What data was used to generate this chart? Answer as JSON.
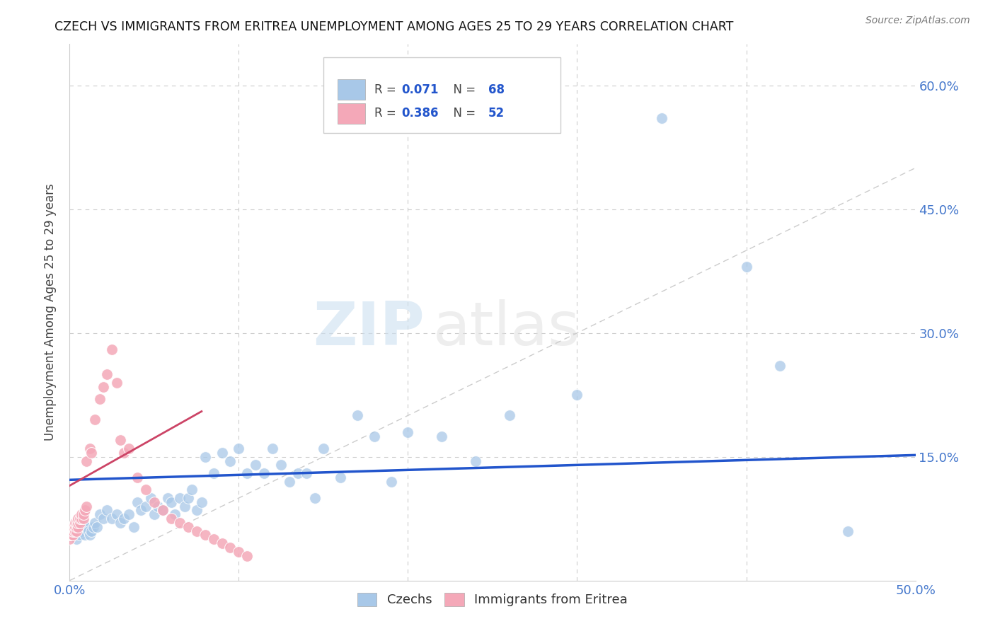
{
  "title": "CZECH VS IMMIGRANTS FROM ERITREA UNEMPLOYMENT AMONG AGES 25 TO 29 YEARS CORRELATION CHART",
  "source": "Source: ZipAtlas.com",
  "ylabel": "Unemployment Among Ages 25 to 29 years",
  "xlim": [
    0,
    0.5
  ],
  "ylim": [
    0,
    0.65
  ],
  "legend_r1": "0.071",
  "legend_n1": "68",
  "legend_r2": "0.386",
  "legend_n2": "52",
  "legend_label1": "Czechs",
  "legend_label2": "Immigrants from Eritrea",
  "blue_color": "#a8c8e8",
  "pink_color": "#f4a8b8",
  "line_blue": "#2255cc",
  "line_pink": "#cc4466",
  "axis_label_color": "#4477cc",
  "czechs_x": [
    0.002,
    0.003,
    0.004,
    0.005,
    0.006,
    0.007,
    0.008,
    0.009,
    0.01,
    0.011,
    0.012,
    0.013,
    0.014,
    0.015,
    0.016,
    0.018,
    0.02,
    0.022,
    0.025,
    0.028,
    0.03,
    0.032,
    0.035,
    0.038,
    0.04,
    0.042,
    0.045,
    0.048,
    0.05,
    0.052,
    0.055,
    0.058,
    0.06,
    0.062,
    0.065,
    0.068,
    0.07,
    0.072,
    0.075,
    0.078,
    0.08,
    0.085,
    0.09,
    0.095,
    0.1,
    0.105,
    0.11,
    0.115,
    0.12,
    0.125,
    0.13,
    0.135,
    0.14,
    0.145,
    0.15,
    0.16,
    0.17,
    0.18,
    0.19,
    0.2,
    0.22,
    0.24,
    0.26,
    0.3,
    0.35,
    0.4,
    0.42,
    0.46
  ],
  "czechs_y": [
    0.055,
    0.06,
    0.05,
    0.065,
    0.055,
    0.06,
    0.07,
    0.055,
    0.065,
    0.06,
    0.055,
    0.06,
    0.065,
    0.07,
    0.065,
    0.08,
    0.075,
    0.085,
    0.075,
    0.08,
    0.07,
    0.075,
    0.08,
    0.065,
    0.095,
    0.085,
    0.09,
    0.1,
    0.08,
    0.09,
    0.085,
    0.1,
    0.095,
    0.08,
    0.1,
    0.09,
    0.1,
    0.11,
    0.085,
    0.095,
    0.15,
    0.13,
    0.155,
    0.145,
    0.16,
    0.13,
    0.14,
    0.13,
    0.16,
    0.14,
    0.12,
    0.13,
    0.13,
    0.1,
    0.16,
    0.125,
    0.2,
    0.175,
    0.12,
    0.18,
    0.175,
    0.145,
    0.2,
    0.225,
    0.56,
    0.38,
    0.26,
    0.06
  ],
  "eritrea_x": [
    0.0,
    0.0,
    0.0,
    0.001,
    0.001,
    0.001,
    0.002,
    0.002,
    0.002,
    0.003,
    0.003,
    0.003,
    0.004,
    0.004,
    0.004,
    0.005,
    0.005,
    0.005,
    0.006,
    0.006,
    0.007,
    0.007,
    0.008,
    0.008,
    0.009,
    0.01,
    0.01,
    0.012,
    0.013,
    0.015,
    0.018,
    0.02,
    0.022,
    0.025,
    0.028,
    0.03,
    0.032,
    0.035,
    0.04,
    0.045,
    0.05,
    0.055,
    0.06,
    0.065,
    0.07,
    0.075,
    0.08,
    0.085,
    0.09,
    0.095,
    0.1,
    0.105
  ],
  "eritrea_y": [
    0.05,
    0.055,
    0.06,
    0.055,
    0.06,
    0.065,
    0.055,
    0.06,
    0.065,
    0.06,
    0.065,
    0.07,
    0.06,
    0.065,
    0.07,
    0.065,
    0.07,
    0.075,
    0.07,
    0.075,
    0.075,
    0.08,
    0.075,
    0.08,
    0.085,
    0.09,
    0.145,
    0.16,
    0.155,
    0.195,
    0.22,
    0.235,
    0.25,
    0.28,
    0.24,
    0.17,
    0.155,
    0.16,
    0.125,
    0.11,
    0.095,
    0.085,
    0.075,
    0.07,
    0.065,
    0.06,
    0.055,
    0.05,
    0.045,
    0.04,
    0.035,
    0.03
  ],
  "blue_line_x0": 0.0,
  "blue_line_x1": 0.5,
  "blue_line_y0": 0.122,
  "blue_line_y1": 0.152,
  "pink_line_x0": 0.0,
  "pink_line_x1": 0.078,
  "pink_line_y0": 0.115,
  "pink_line_y1": 0.205
}
